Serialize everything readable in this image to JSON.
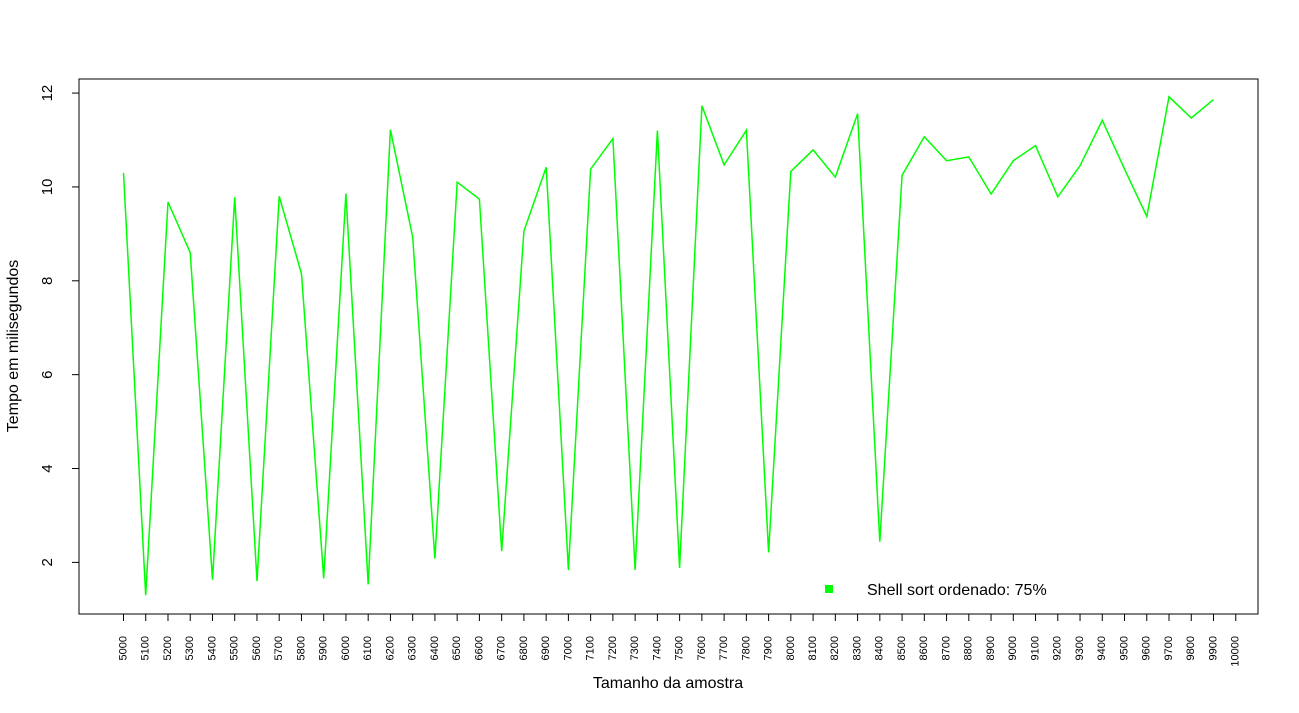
{
  "chart_data": {
    "type": "line",
    "title": "",
    "xlabel": "Tamanho da amostra",
    "ylabel": "Tempo em milisegundos",
    "x_ticks": [
      5000,
      5100,
      5200,
      5300,
      5400,
      5500,
      5600,
      5700,
      5800,
      5900,
      6000,
      6100,
      6200,
      6300,
      6400,
      6500,
      6600,
      6700,
      6800,
      6900,
      7000,
      7100,
      7200,
      7300,
      7400,
      7500,
      7600,
      7700,
      7800,
      7900,
      8000,
      8100,
      8200,
      8300,
      8400,
      8500,
      8600,
      8700,
      8800,
      8900,
      9000,
      9100,
      9200,
      9300,
      9400,
      9500,
      9600,
      9700,
      9800,
      9900,
      10000
    ],
    "y_ticks": [
      2,
      4,
      6,
      8,
      10,
      12
    ],
    "ylim": [
      0.9,
      12.3
    ],
    "xlim": [
      4800,
      10100
    ],
    "grid": false,
    "legend_position": "bottom-center",
    "series": [
      {
        "name": "Shell sort ordenado: 75%",
        "color": "#00ff00",
        "x": [
          5000,
          5100,
          5200,
          5300,
          5400,
          5500,
          5600,
          5700,
          5800,
          5900,
          6000,
          6100,
          6200,
          6300,
          6400,
          6500,
          6600,
          6700,
          6800,
          6900,
          7000,
          7100,
          7200,
          7300,
          7400,
          7500,
          7600,
          7700,
          7800,
          7900,
          8000,
          8100,
          8200,
          8300,
          8400,
          8500,
          8600,
          8700,
          8800,
          8900,
          9000,
          9100,
          9200,
          9300,
          9400,
          9500,
          9600,
          9700,
          9800,
          9900
        ],
        "values": [
          10.3,
          1.3,
          9.68,
          8.6,
          1.63,
          9.78,
          1.6,
          9.8,
          8.15,
          1.66,
          9.86,
          1.53,
          11.22,
          8.93,
          2.08,
          10.1,
          9.74,
          2.24,
          9.06,
          10.42,
          1.84,
          10.38,
          11.03,
          1.84,
          11.2,
          1.88,
          11.73,
          10.47,
          11.21,
          2.21,
          10.33,
          10.79,
          10.21,
          11.56,
          2.44,
          10.25,
          11.07,
          10.56,
          10.64,
          9.85,
          10.56,
          10.88,
          9.79,
          10.45,
          11.42,
          10.38,
          9.37,
          11.92,
          11.47,
          11.86
        ]
      }
    ]
  }
}
